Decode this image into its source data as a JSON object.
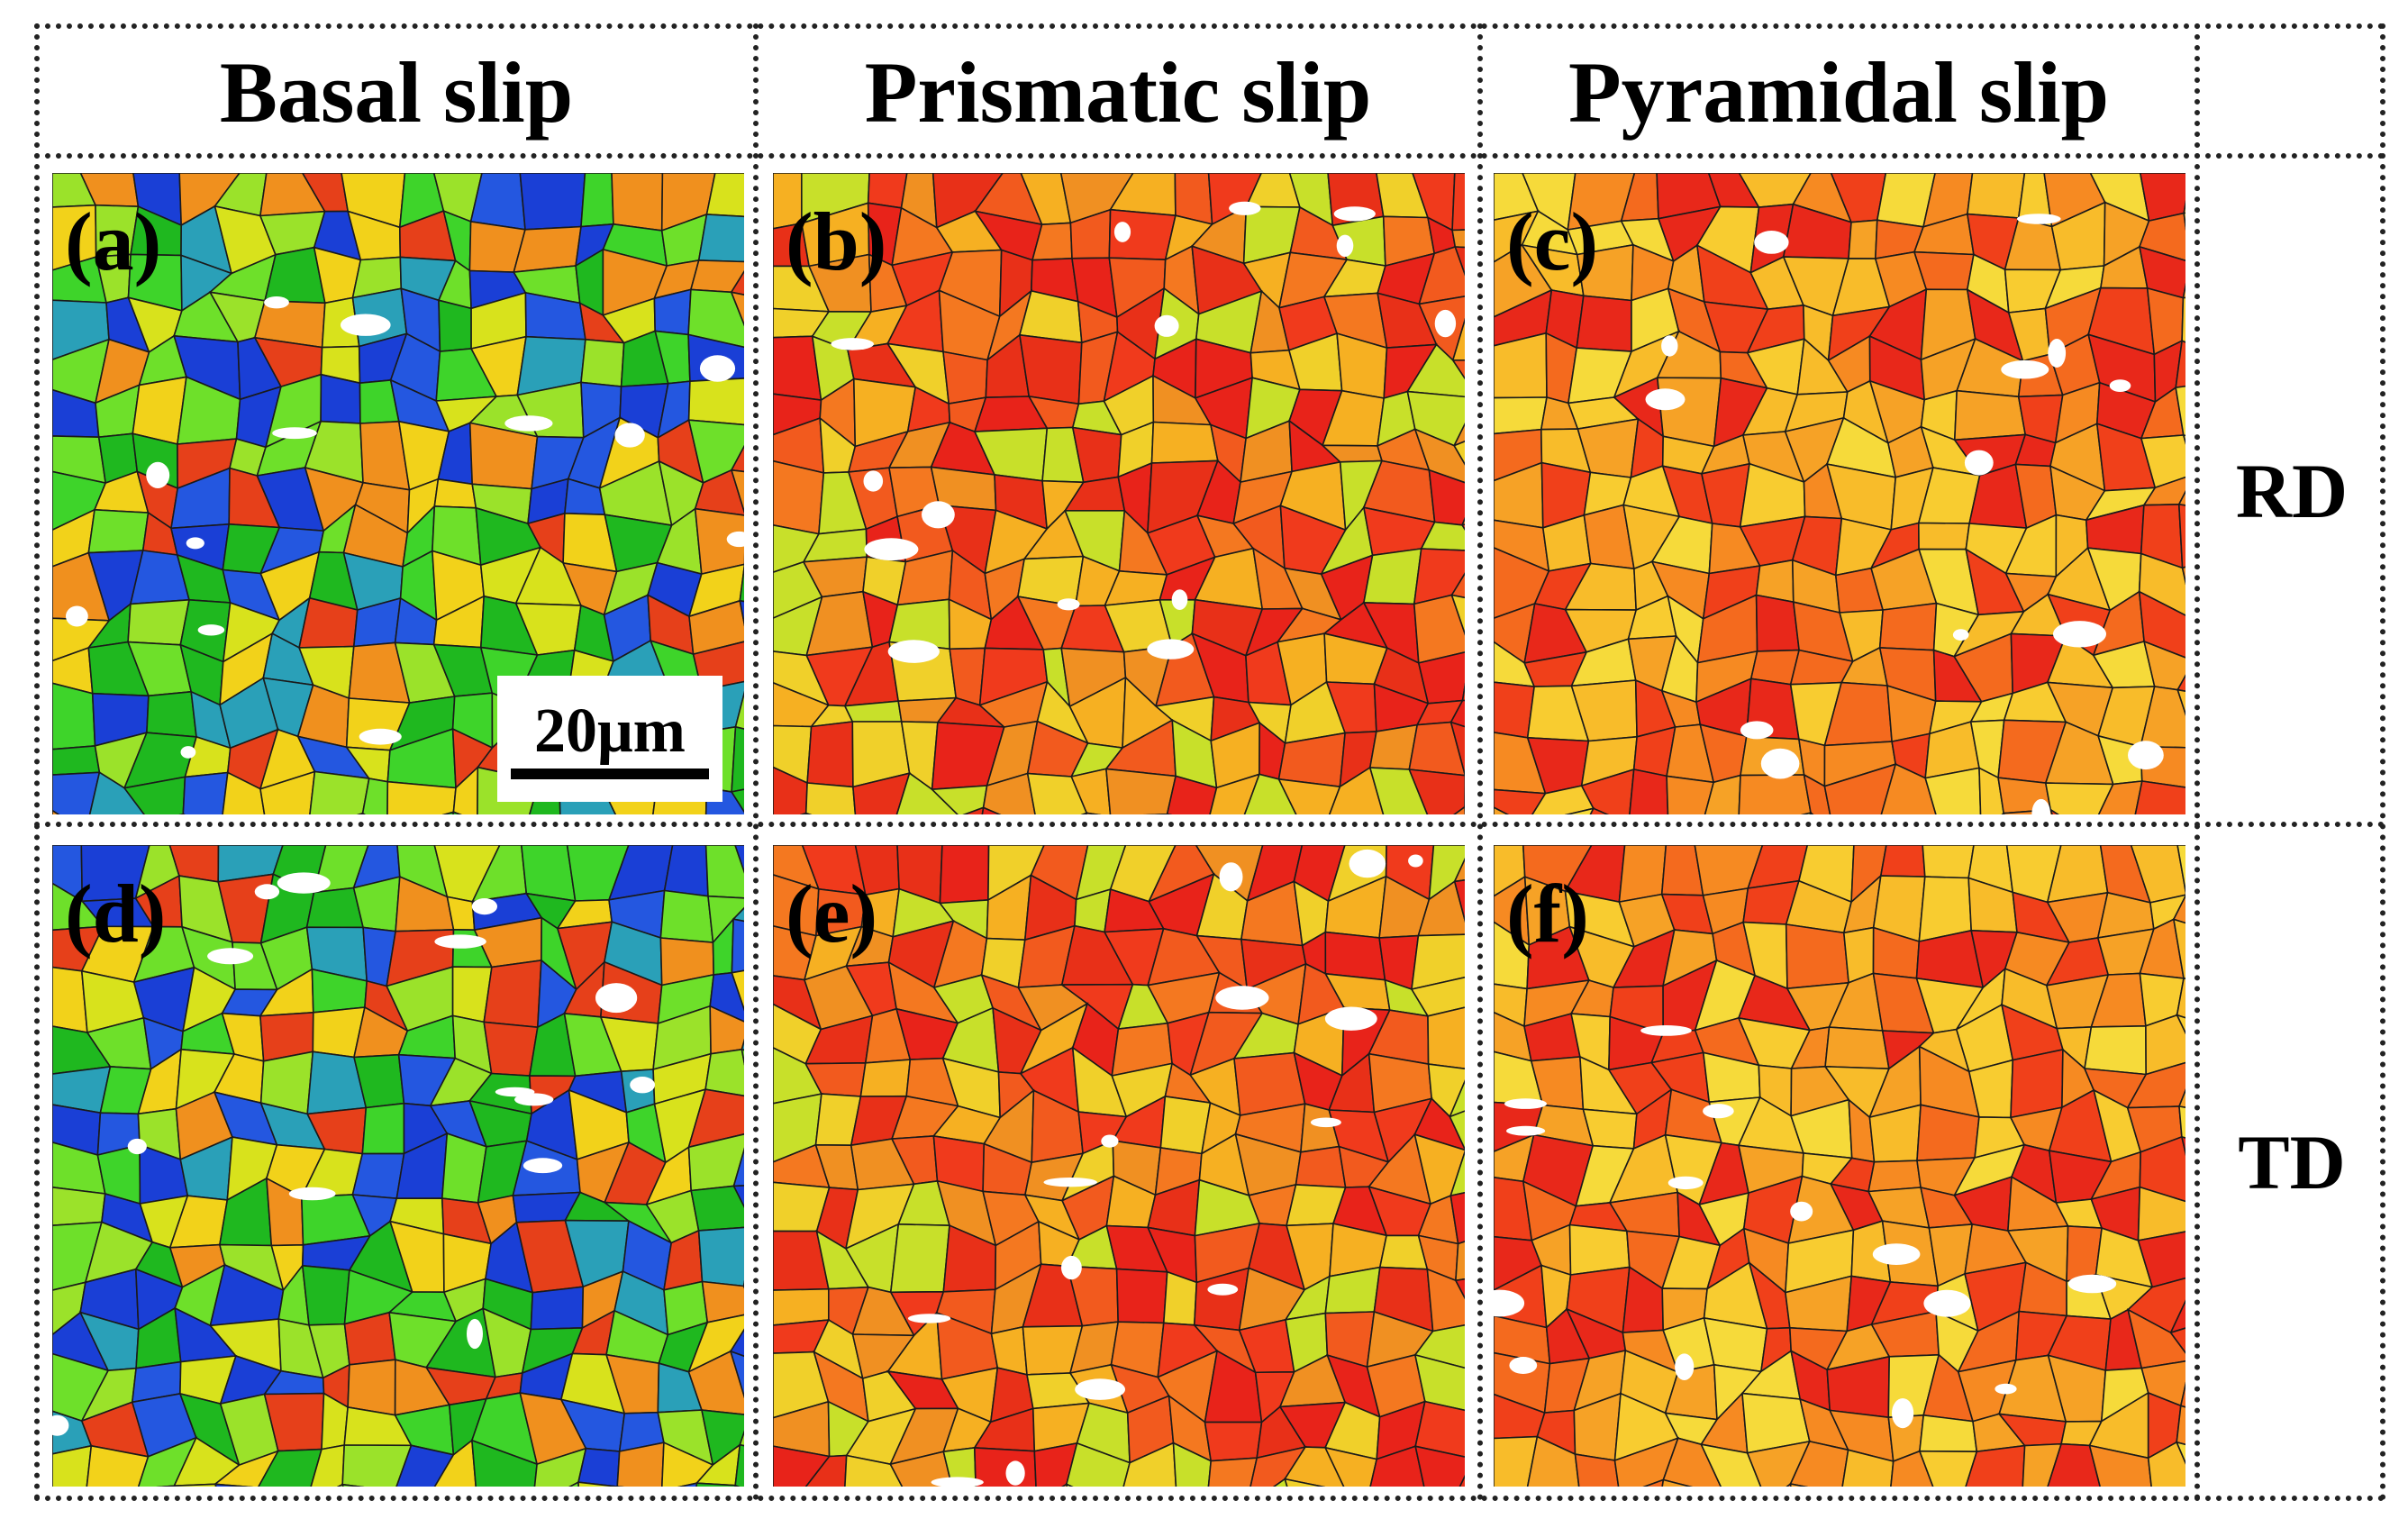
{
  "columns": [
    "Basal slip",
    "Prismatic slip",
    "Pyramidal slip"
  ],
  "rows": [
    "RD",
    "TD"
  ],
  "panels": [
    {
      "label": "(a)",
      "slip": "basal",
      "row": "RD"
    },
    {
      "label": "(b)",
      "slip": "prismatic",
      "row": "RD"
    },
    {
      "label": "(c)",
      "slip": "pyramidal",
      "row": "RD"
    },
    {
      "label": "(d)",
      "slip": "basal",
      "row": "TD"
    },
    {
      "label": "(e)",
      "slip": "prismatic",
      "row": "TD"
    },
    {
      "label": "(f)",
      "slip": "pyramidal",
      "row": "TD"
    }
  ],
  "scale_bar": "20μm",
  "palettes": {
    "basal": [
      "#1a3fd6",
      "#2457e0",
      "#1fb81f",
      "#3ed42a",
      "#6ee02a",
      "#9be22a",
      "#d8e21c",
      "#f2d21a",
      "#f0901e",
      "#e6401a",
      "#2aa0b8"
    ],
    "prismatic": [
      "#e8231a",
      "#f03a1c",
      "#f25a1e",
      "#f47820",
      "#f09022",
      "#e83018",
      "#f6b022",
      "#f0d02a",
      "#c8e02a"
    ],
    "pyramidal": [
      "#f0401a",
      "#f46a1e",
      "#f68a22",
      "#f6a226",
      "#f8bc2a",
      "#f8cc30",
      "#e8281a",
      "#f6da3a"
    ]
  }
}
